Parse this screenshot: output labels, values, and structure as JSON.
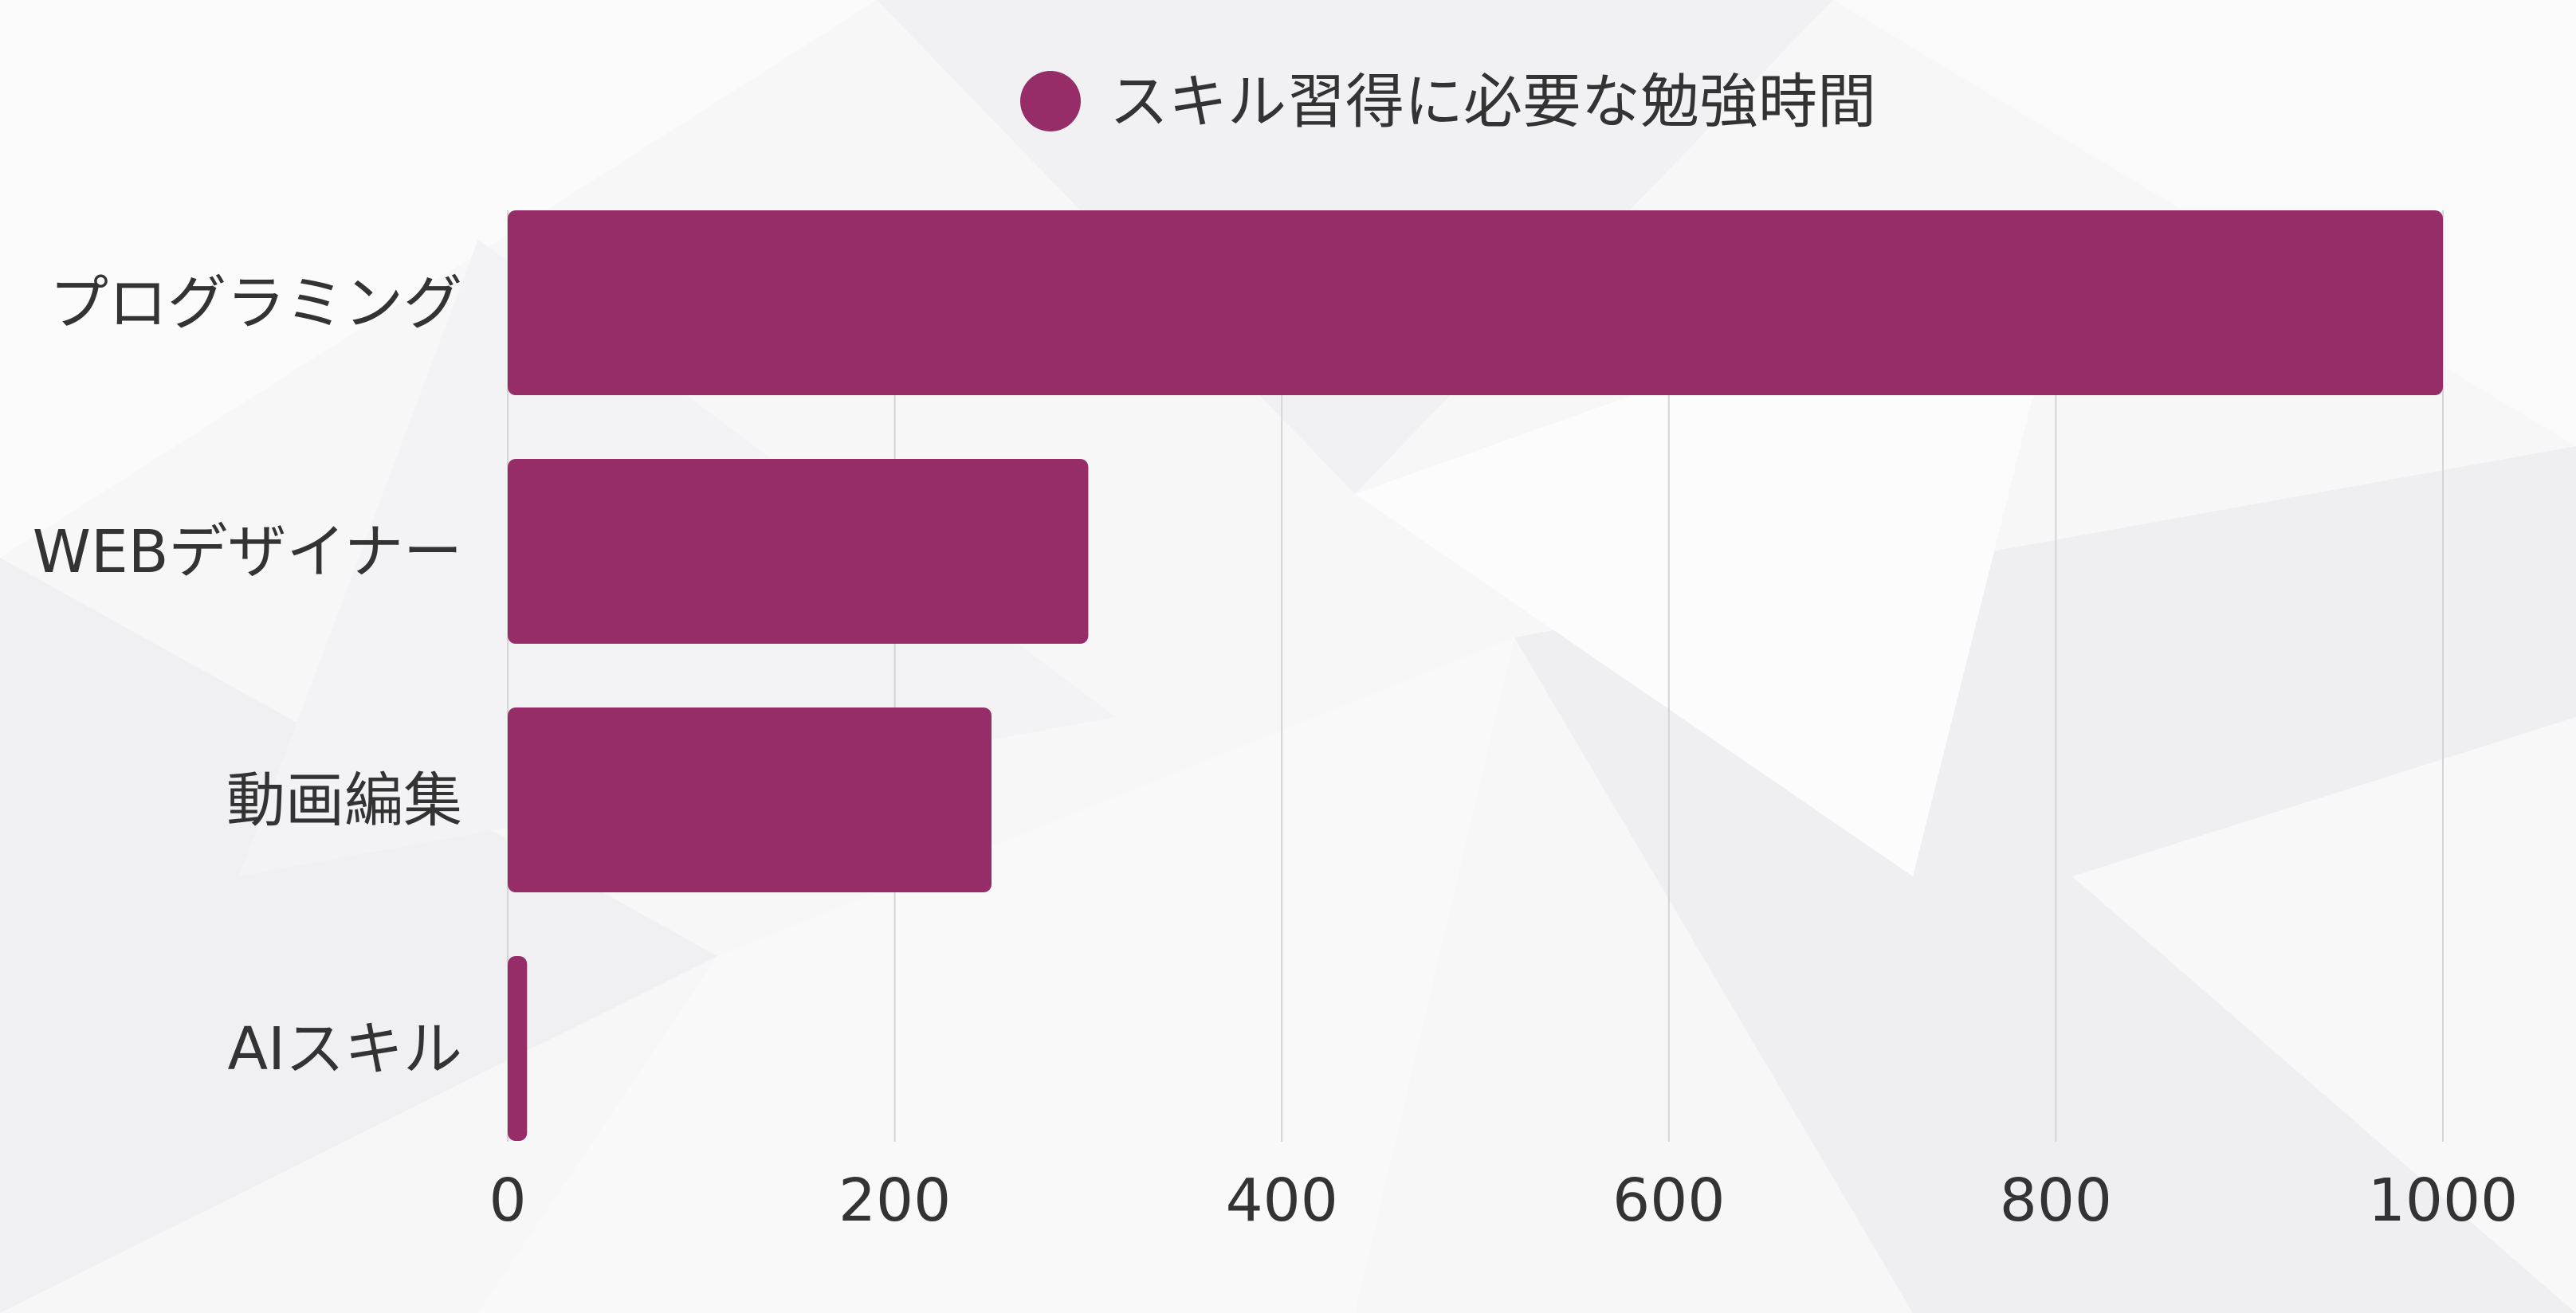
{
  "chart_data": {
    "type": "bar",
    "orientation": "horizontal",
    "categories": [
      "プログラミング",
      "WEBデザイナー",
      "動画編集",
      "AIスキル"
    ],
    "series": [
      {
        "name": "スキル習得に必要な勉強時間",
        "values": [
          1000,
          300,
          250,
          10
        ],
        "color": "#962d69"
      }
    ],
    "xlim": [
      0,
      1000
    ],
    "x_ticks": [
      "0",
      "200",
      "400",
      "600",
      "800",
      "1000"
    ],
    "x_tick_values": [
      0,
      200,
      400,
      600,
      800,
      1000
    ],
    "grid": true,
    "legend_position": "top"
  }
}
